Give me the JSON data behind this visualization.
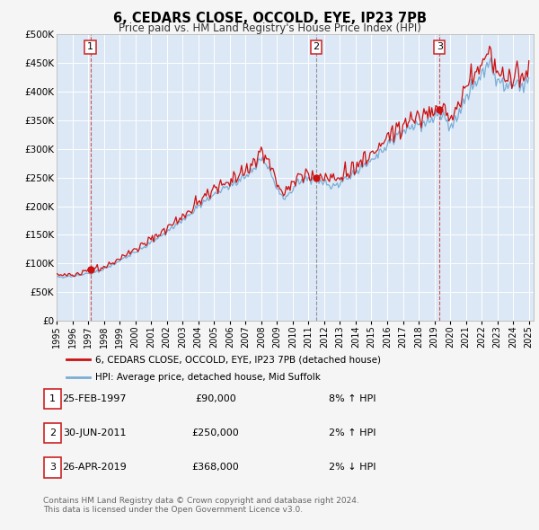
{
  "title": "6, CEDARS CLOSE, OCCOLD, EYE, IP23 7PB",
  "subtitle": "Price paid vs. HM Land Registry's House Price Index (HPI)",
  "ylim": [
    0,
    500000
  ],
  "xlim_start": 1995.0,
  "xlim_end": 2025.3,
  "plot_bg_color": "#dce8f5",
  "grid_color": "#ffffff",
  "hpi_line_color": "#7aaed6",
  "price_line_color": "#cc1111",
  "sale_dot_color": "#cc1111",
  "vline_colors": [
    "#cc4444",
    "#888888",
    "#cc4444"
  ],
  "sale_points": [
    {
      "year": 1997.15,
      "price": 90000,
      "label": "1"
    },
    {
      "year": 2011.5,
      "price": 250000,
      "label": "2"
    },
    {
      "year": 2019.32,
      "price": 368000,
      "label": "3"
    }
  ],
  "legend_entries": [
    {
      "label": "6, CEDARS CLOSE, OCCOLD, EYE, IP23 7PB (detached house)",
      "color": "#cc1111"
    },
    {
      "label": "HPI: Average price, detached house, Mid Suffolk",
      "color": "#7aaed6"
    }
  ],
  "table_rows": [
    {
      "num": "1",
      "date": "25-FEB-1997",
      "price": "£90,000",
      "hpi": "8% ↑ HPI"
    },
    {
      "num": "2",
      "date": "30-JUN-2011",
      "price": "£250,000",
      "hpi": "2% ↑ HPI"
    },
    {
      "num": "3",
      "date": "26-APR-2019",
      "price": "£368,000",
      "hpi": "2% ↓ HPI"
    }
  ],
  "footnote1": "Contains HM Land Registry data © Crown copyright and database right 2024.",
  "footnote2": "This data is licensed under the Open Government Licence v3.0.",
  "ytick_labels": [
    "£0",
    "£50K",
    "£100K",
    "£150K",
    "£200K",
    "£250K",
    "£300K",
    "£350K",
    "£400K",
    "£450K",
    "£500K"
  ],
  "ytick_values": [
    0,
    50000,
    100000,
    150000,
    200000,
    250000,
    300000,
    350000,
    400000,
    450000,
    500000
  ]
}
